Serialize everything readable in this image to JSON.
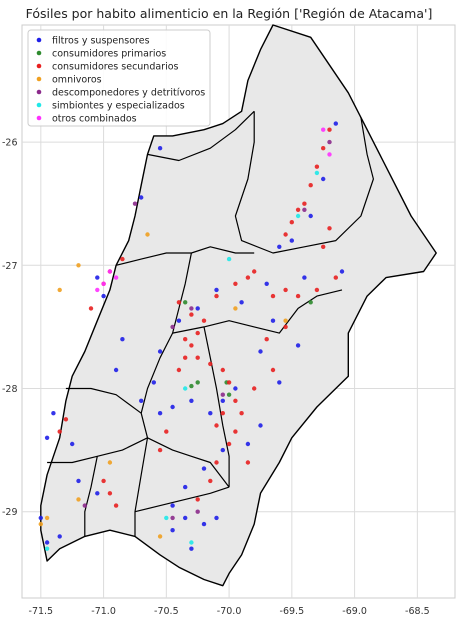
{
  "chart_data": {
    "type": "scatter",
    "title": "Fósiles por habito alimenticio en la Región ['Región de Atacama']",
    "xlabel": "",
    "ylabel": "",
    "xlim": [
      -71.65,
      -68.2
    ],
    "ylim": [
      -29.7,
      -25.05
    ],
    "x_ticks": [
      {
        "value": -71.5,
        "label": "-71.5"
      },
      {
        "value": -71.0,
        "label": "-71.0"
      },
      {
        "value": -70.5,
        "label": "-70.5"
      },
      {
        "value": -70.0,
        "label": "-70.0"
      },
      {
        "value": -69.5,
        "label": "-69.5"
      },
      {
        "value": -69.0,
        "label": "-69.0"
      },
      {
        "value": -68.5,
        "label": "-68.5"
      }
    ],
    "y_ticks": [
      {
        "value": -26,
        "label": "-26"
      },
      {
        "value": -27,
        "label": "-27"
      },
      {
        "value": -28,
        "label": "-28"
      },
      {
        "value": -29,
        "label": "-29"
      }
    ],
    "grid": true,
    "legend_position": "top-left",
    "region_fill": "#e8e8e8",
    "border_color": "#000000",
    "region_outline": [
      [
        -69.65,
        -25.05
      ],
      [
        -69.35,
        -25.15
      ],
      [
        -69.05,
        -25.6
      ],
      [
        -68.95,
        -25.8
      ],
      [
        -68.75,
        -26.2
      ],
      [
        -68.55,
        -26.6
      ],
      [
        -68.35,
        -26.9
      ],
      [
        -68.45,
        -27.05
      ],
      [
        -68.75,
        -27.1
      ],
      [
        -68.9,
        -27.25
      ],
      [
        -69.05,
        -27.55
      ],
      [
        -69.05,
        -27.9
      ],
      [
        -69.3,
        -28.15
      ],
      [
        -69.5,
        -28.4
      ],
      [
        -69.6,
        -28.6
      ],
      [
        -69.75,
        -28.85
      ],
      [
        -69.8,
        -29.1
      ],
      [
        -69.9,
        -29.35
      ],
      [
        -70.0,
        -29.5
      ],
      [
        -70.05,
        -29.6
      ],
      [
        -70.2,
        -29.55
      ],
      [
        -70.4,
        -29.45
      ],
      [
        -70.55,
        -29.35
      ],
      [
        -70.75,
        -29.2
      ],
      [
        -70.95,
        -29.15
      ],
      [
        -71.15,
        -29.2
      ],
      [
        -71.35,
        -29.3
      ],
      [
        -71.45,
        -29.4
      ],
      [
        -71.5,
        -29.15
      ],
      [
        -71.5,
        -28.95
      ],
      [
        -71.45,
        -28.7
      ],
      [
        -71.35,
        -28.4
      ],
      [
        -71.3,
        -28.1
      ],
      [
        -71.25,
        -27.9
      ],
      [
        -71.15,
        -27.7
      ],
      [
        -71.05,
        -27.45
      ],
      [
        -70.95,
        -27.2
      ],
      [
        -70.9,
        -27.0
      ],
      [
        -70.8,
        -26.8
      ],
      [
        -70.75,
        -26.6
      ],
      [
        -70.7,
        -26.35
      ],
      [
        -70.65,
        -26.1
      ],
      [
        -70.6,
        -25.95
      ],
      [
        -70.45,
        -25.95
      ],
      [
        -70.2,
        -25.9
      ],
      [
        -70.05,
        -25.85
      ],
      [
        -69.9,
        -25.75
      ],
      [
        -69.85,
        -25.5
      ],
      [
        -69.75,
        -25.25
      ]
    ],
    "internal_borders": [
      [
        [
          -70.65,
          -26.1
        ],
        [
          -70.4,
          -26.15
        ],
        [
          -70.15,
          -26.05
        ],
        [
          -69.95,
          -25.9
        ],
        [
          -69.8,
          -25.75
        ]
      ],
      [
        [
          -69.8,
          -25.75
        ],
        [
          -69.8,
          -26.0
        ],
        [
          -69.85,
          -26.3
        ],
        [
          -69.95,
          -26.6
        ],
        [
          -69.9,
          -26.8
        ],
        [
          -69.65,
          -26.9
        ],
        [
          -69.4,
          -26.85
        ],
        [
          -69.15,
          -26.8
        ],
        [
          -68.95,
          -26.6
        ],
        [
          -68.85,
          -26.3
        ],
        [
          -68.9,
          -26.1
        ],
        [
          -68.95,
          -25.8
        ]
      ],
      [
        [
          -70.9,
          -27.0
        ],
        [
          -70.7,
          -26.95
        ],
        [
          -70.5,
          -26.9
        ],
        [
          -70.3,
          -26.9
        ],
        [
          -70.15,
          -26.85
        ],
        [
          -69.95,
          -26.9
        ],
        [
          -69.8,
          -26.9
        ]
      ],
      [
        [
          -70.3,
          -26.9
        ],
        [
          -70.35,
          -27.15
        ],
        [
          -70.4,
          -27.35
        ],
        [
          -70.45,
          -27.55
        ],
        [
          -70.55,
          -27.75
        ],
        [
          -70.65,
          -28.0
        ],
        [
          -70.7,
          -28.2
        ],
        [
          -70.65,
          -28.4
        ]
      ],
      [
        [
          -70.45,
          -27.55
        ],
        [
          -70.2,
          -27.5
        ],
        [
          -70.0,
          -27.45
        ],
        [
          -69.8,
          -27.5
        ],
        [
          -69.6,
          -27.55
        ],
        [
          -69.45,
          -27.35
        ],
        [
          -69.3,
          -27.25
        ],
        [
          -69.1,
          -27.2
        ]
      ],
      [
        [
          -70.2,
          -27.5
        ],
        [
          -70.15,
          -27.75
        ],
        [
          -70.1,
          -28.0
        ],
        [
          -70.05,
          -28.3
        ],
        [
          -70.0,
          -28.55
        ],
        [
          -70.0,
          -28.8
        ]
      ],
      [
        [
          -71.3,
          -28.0
        ],
        [
          -71.1,
          -28.0
        ],
        [
          -70.9,
          -28.05
        ],
        [
          -70.7,
          -28.2
        ]
      ],
      [
        [
          -70.65,
          -28.4
        ],
        [
          -70.45,
          -28.5
        ],
        [
          -70.3,
          -28.55
        ],
        [
          -70.15,
          -28.6
        ],
        [
          -70.0,
          -28.8
        ]
      ],
      [
        [
          -70.65,
          -28.4
        ],
        [
          -70.7,
          -28.7
        ],
        [
          -70.75,
          -29.0
        ],
        [
          -70.75,
          -29.2
        ]
      ],
      [
        [
          -71.45,
          -28.6
        ],
        [
          -71.25,
          -28.6
        ],
        [
          -71.05,
          -28.55
        ],
        [
          -70.85,
          -28.5
        ],
        [
          -70.65,
          -28.4
        ]
      ],
      [
        [
          -71.05,
          -28.55
        ],
        [
          -71.1,
          -28.8
        ],
        [
          -71.15,
          -29.0
        ],
        [
          -71.15,
          -29.2
        ]
      ],
      [
        [
          -70.75,
          -29.0
        ],
        [
          -70.55,
          -28.95
        ],
        [
          -70.35,
          -28.9
        ],
        [
          -70.15,
          -28.85
        ],
        [
          -70.0,
          -28.8
        ]
      ]
    ],
    "series": [
      {
        "name": "filtros y suspensores",
        "color": "#1f1fe8",
        "points": [
          [
            -69.15,
            -25.85
          ],
          [
            -69.25,
            -26.3
          ],
          [
            -69.35,
            -26.6
          ],
          [
            -69.5,
            -26.8
          ],
          [
            -69.6,
            -26.85
          ],
          [
            -69.1,
            -27.05
          ],
          [
            -69.4,
            -27.1
          ],
          [
            -69.7,
            -27.15
          ],
          [
            -69.9,
            -27.3
          ],
          [
            -70.1,
            -27.2
          ],
          [
            -70.25,
            -27.35
          ],
          [
            -70.4,
            -27.45
          ],
          [
            -70.55,
            -27.7
          ],
          [
            -70.6,
            -27.95
          ],
          [
            -70.7,
            -28.1
          ],
          [
            -70.55,
            -28.2
          ],
          [
            -70.45,
            -28.15
          ],
          [
            -70.3,
            -28.1
          ],
          [
            -70.15,
            -28.2
          ],
          [
            -70.05,
            -28.1
          ],
          [
            -69.95,
            -28.0
          ],
          [
            -70.05,
            -28.5
          ],
          [
            -70.2,
            -28.65
          ],
          [
            -70.35,
            -28.8
          ],
          [
            -70.45,
            -28.95
          ],
          [
            -70.35,
            -29.05
          ],
          [
            -70.2,
            -29.1
          ],
          [
            -70.1,
            -29.05
          ],
          [
            -70.3,
            -29.3
          ],
          [
            -70.45,
            -29.15
          ],
          [
            -71.05,
            -28.85
          ],
          [
            -71.2,
            -28.75
          ],
          [
            -71.25,
            -28.45
          ],
          [
            -71.4,
            -28.2
          ],
          [
            -71.45,
            -28.4
          ],
          [
            -71.5,
            -29.05
          ],
          [
            -71.45,
            -29.25
          ],
          [
            -71.35,
            -29.2
          ],
          [
            -70.85,
            -27.6
          ],
          [
            -70.9,
            -27.85
          ],
          [
            -71.0,
            -27.25
          ],
          [
            -71.05,
            -27.1
          ],
          [
            -70.7,
            -26.45
          ],
          [
            -70.55,
            -26.05
          ],
          [
            -69.75,
            -27.7
          ],
          [
            -69.65,
            -27.45
          ],
          [
            -69.75,
            -28.3
          ],
          [
            -69.85,
            -28.45
          ],
          [
            -69.6,
            -27.95
          ],
          [
            -69.45,
            -27.65
          ]
        ]
      },
      {
        "name": "consumidores primarios",
        "color": "#2e8b2e",
        "points": [
          [
            -70.25,
            -27.95
          ],
          [
            -70.3,
            -27.98
          ],
          [
            -70.02,
            -27.95
          ],
          [
            -70.0,
            -28.05
          ],
          [
            -69.35,
            -27.3
          ],
          [
            -70.35,
            -27.3
          ]
        ]
      },
      {
        "name": "consumidores secundarios",
        "color": "#e82020",
        "points": [
          [
            -69.2,
            -25.9
          ],
          [
            -69.25,
            -26.05
          ],
          [
            -69.3,
            -26.2
          ],
          [
            -69.35,
            -26.35
          ],
          [
            -69.4,
            -26.5
          ],
          [
            -69.45,
            -26.55
          ],
          [
            -69.5,
            -26.65
          ],
          [
            -69.55,
            -26.75
          ],
          [
            -69.2,
            -26.7
          ],
          [
            -69.25,
            -26.85
          ],
          [
            -69.15,
            -27.1
          ],
          [
            -69.3,
            -27.2
          ],
          [
            -69.45,
            -27.25
          ],
          [
            -69.55,
            -27.2
          ],
          [
            -69.65,
            -27.25
          ],
          [
            -69.85,
            -27.1
          ],
          [
            -69.95,
            -27.15
          ],
          [
            -70.1,
            -27.25
          ],
          [
            -70.2,
            -27.45
          ],
          [
            -70.25,
            -27.55
          ],
          [
            -70.3,
            -27.65
          ],
          [
            -70.35,
            -27.75
          ],
          [
            -70.4,
            -27.85
          ],
          [
            -70.25,
            -27.75
          ],
          [
            -70.15,
            -27.8
          ],
          [
            -70.05,
            -27.85
          ],
          [
            -70.0,
            -27.95
          ],
          [
            -69.95,
            -28.1
          ],
          [
            -69.9,
            -28.2
          ],
          [
            -69.95,
            -28.35
          ],
          [
            -70.0,
            -28.45
          ],
          [
            -70.1,
            -28.6
          ],
          [
            -70.15,
            -28.75
          ],
          [
            -70.25,
            -28.9
          ],
          [
            -70.5,
            -28.35
          ],
          [
            -70.55,
            -28.5
          ],
          [
            -70.95,
            -28.85
          ],
          [
            -70.9,
            -28.95
          ],
          [
            -71.0,
            -28.75
          ],
          [
            -71.3,
            -28.25
          ],
          [
            -71.35,
            -28.35
          ],
          [
            -71.1,
            -27.35
          ],
          [
            -71.0,
            -27.15
          ],
          [
            -70.95,
            -27.05
          ],
          [
            -70.85,
            -26.95
          ],
          [
            -69.55,
            -27.5
          ],
          [
            -69.7,
            -27.6
          ],
          [
            -69.65,
            -27.85
          ],
          [
            -69.8,
            -28.0
          ],
          [
            -69.8,
            -27.05
          ],
          [
            -70.4,
            -27.3
          ],
          [
            -70.3,
            -27.4
          ],
          [
            -70.35,
            -27.6
          ],
          [
            -70.05,
            -28.2
          ],
          [
            -70.1,
            -28.3
          ],
          [
            -69.85,
            -28.6
          ]
        ]
      },
      {
        "name": "omnivoros",
        "color": "#f0a020",
        "points": [
          [
            -71.5,
            -29.1
          ],
          [
            -71.45,
            -29.05
          ],
          [
            -71.2,
            -28.9
          ],
          [
            -71.35,
            -27.2
          ],
          [
            -71.2,
            -27.0
          ],
          [
            -70.65,
            -26.75
          ],
          [
            -69.95,
            -27.35
          ],
          [
            -69.55,
            -27.45
          ],
          [
            -70.95,
            -28.6
          ],
          [
            -70.55,
            -29.2
          ]
        ]
      },
      {
        "name": "descomponedores y detritívoros",
        "color": "#8b2a8b",
        "points": [
          [
            -69.2,
            -26.0
          ],
          [
            -69.4,
            -26.55
          ],
          [
            -70.3,
            -27.35
          ],
          [
            -70.45,
            -27.5
          ],
          [
            -70.05,
            -28.05
          ],
          [
            -70.45,
            -29.05
          ],
          [
            -70.25,
            -29.0
          ],
          [
            -71.15,
            -28.95
          ],
          [
            -70.75,
            -26.5
          ]
        ]
      },
      {
        "name": "simbiontes y especializados",
        "color": "#20e8e8",
        "points": [
          [
            -69.3,
            -26.25
          ],
          [
            -69.45,
            -26.6
          ],
          [
            -70.0,
            -26.95
          ],
          [
            -70.3,
            -29.25
          ],
          [
            -70.5,
            -29.05
          ],
          [
            -70.35,
            -28.0
          ],
          [
            -71.45,
            -29.3
          ]
        ]
      },
      {
        "name": "otros combinados",
        "color": "#ff30ff",
        "points": [
          [
            -70.95,
            -27.05
          ],
          [
            -71.0,
            -27.15
          ],
          [
            -71.05,
            -27.2
          ],
          [
            -70.9,
            -27.1
          ],
          [
            -69.25,
            -25.9
          ],
          [
            -69.2,
            -26.1
          ]
        ]
      }
    ]
  }
}
